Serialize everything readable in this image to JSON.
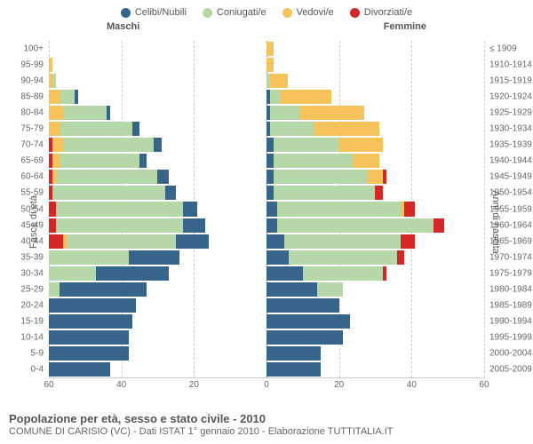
{
  "legend": [
    {
      "label": "Celibi/Nubili",
      "color": "#36648b"
    },
    {
      "label": "Coniugati/e",
      "color": "#b6d7a8"
    },
    {
      "label": "Vedovi/e",
      "color": "#f6c35b"
    },
    {
      "label": "Divorziati/e",
      "color": "#d62728"
    }
  ],
  "genders": {
    "left": "Maschi",
    "right": "Femmine"
  },
  "axisTitles": {
    "left": "Fasce di età",
    "right": "Anni di nascita"
  },
  "footer": {
    "title": "Popolazione per età, sesso e stato civile - 2010",
    "subtitle": "COMUNE DI CARISIO (VC) - Dati ISTAT 1° gennaio 2010 - Elaborazione TUTTITALIA.IT"
  },
  "chart": {
    "type": "population-pyramid",
    "max": 60,
    "ticks": [
      60,
      40,
      20,
      0,
      20,
      40,
      60
    ],
    "background_color": "#ffffff",
    "grid_color": "#cccccc",
    "label_fontsize": 10,
    "ageBands": [
      {
        "age": "0-4",
        "year": "2005-2009",
        "m": [
          17,
          0,
          0,
          0
        ],
        "f": [
          15,
          0,
          0,
          0
        ]
      },
      {
        "age": "5-9",
        "year": "2000-2004",
        "m": [
          22,
          0,
          0,
          0
        ],
        "f": [
          15,
          0,
          0,
          0
        ]
      },
      {
        "age": "10-14",
        "year": "1995-1999",
        "m": [
          22,
          0,
          0,
          0
        ],
        "f": [
          21,
          0,
          0,
          0
        ]
      },
      {
        "age": "15-19",
        "year": "1990-1994",
        "m": [
          23,
          0,
          0,
          0
        ],
        "f": [
          23,
          0,
          0,
          0
        ]
      },
      {
        "age": "20-24",
        "year": "1985-1989",
        "m": [
          24,
          0,
          0,
          0
        ],
        "f": [
          20,
          0,
          0,
          0
        ]
      },
      {
        "age": "25-29",
        "year": "1980-1984",
        "m": [
          24,
          3,
          0,
          0
        ],
        "f": [
          14,
          7,
          0,
          0
        ]
      },
      {
        "age": "30-34",
        "year": "1975-1979",
        "m": [
          20,
          13,
          0,
          0
        ],
        "f": [
          10,
          22,
          0,
          1
        ]
      },
      {
        "age": "35-39",
        "year": "1970-1974",
        "m": [
          14,
          22,
          0,
          0
        ],
        "f": [
          6,
          30,
          0,
          2
        ]
      },
      {
        "age": "40-44",
        "year": "1965-1969",
        "m": [
          9,
          30,
          1,
          4
        ],
        "f": [
          5,
          32,
          0,
          4
        ]
      },
      {
        "age": "45-49",
        "year": "1960-1964",
        "m": [
          6,
          35,
          0,
          2
        ],
        "f": [
          3,
          43,
          0,
          3
        ]
      },
      {
        "age": "50-54",
        "year": "1955-1959",
        "m": [
          4,
          35,
          0,
          2
        ],
        "f": [
          3,
          34,
          1,
          3
        ]
      },
      {
        "age": "55-59",
        "year": "1950-1954",
        "m": [
          3,
          31,
          0,
          1
        ],
        "f": [
          2,
          28,
          0,
          2
        ]
      },
      {
        "age": "60-64",
        "year": "1945-1949",
        "m": [
          3,
          28,
          1,
          1
        ],
        "f": [
          2,
          26,
          4,
          1
        ]
      },
      {
        "age": "65-69",
        "year": "1940-1944",
        "m": [
          2,
          22,
          2,
          1
        ],
        "f": [
          2,
          22,
          7,
          0
        ]
      },
      {
        "age": "70-74",
        "year": "1935-1939",
        "m": [
          2,
          25,
          3,
          1
        ],
        "f": [
          2,
          18,
          12,
          0
        ]
      },
      {
        "age": "75-79",
        "year": "1930-1934",
        "m": [
          2,
          20,
          3,
          0
        ],
        "f": [
          1,
          12,
          18,
          0
        ]
      },
      {
        "age": "80-84",
        "year": "1925-1929",
        "m": [
          1,
          12,
          4,
          0
        ],
        "f": [
          1,
          8,
          18,
          0
        ]
      },
      {
        "age": "85-89",
        "year": "1920-1924",
        "m": [
          1,
          4,
          3,
          0
        ],
        "f": [
          1,
          3,
          14,
          0
        ]
      },
      {
        "age": "90-94",
        "year": "1915-1919",
        "m": [
          0,
          1,
          1,
          0
        ],
        "f": [
          0,
          1,
          5,
          0
        ]
      },
      {
        "age": "95-99",
        "year": "1910-1914",
        "m": [
          0,
          0,
          1,
          0
        ],
        "f": [
          0,
          0,
          2,
          0
        ]
      },
      {
        "age": "100+",
        "year": "≤ 1909",
        "m": [
          0,
          0,
          0,
          0
        ],
        "f": [
          0,
          0,
          2,
          0
        ]
      }
    ]
  }
}
